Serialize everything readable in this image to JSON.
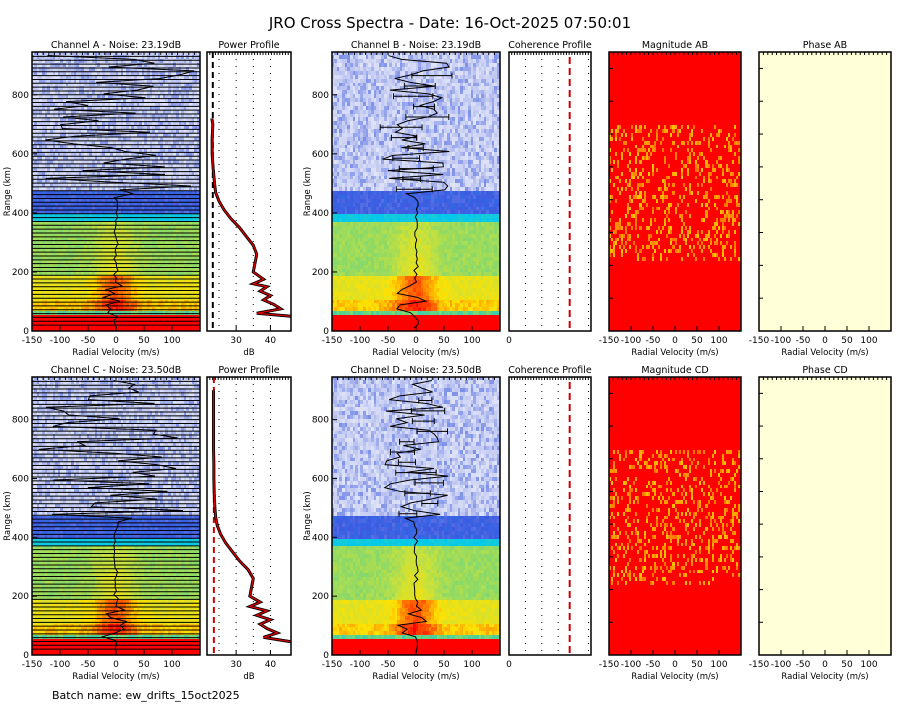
{
  "title": "JRO Cross Spectra - Date: 16-Oct-2025 07:50:01",
  "footer": "Batch name: ew_drifts_15oct2025",
  "colors": {
    "noise_line": "#000000",
    "profile_line": "#cc0000",
    "coherence_line": "#cc0000",
    "phase_fill": "#ffffd8",
    "magnitude_fill": "#ff0000"
  },
  "chart_data": [
    {
      "id": "A",
      "type": "heatmap",
      "title": "Channel A - Noise: 23.19dB",
      "noise_db": 23.19,
      "xlabel": "Radial Velocity (m/s)",
      "ylabel": "Range (km)",
      "xlim": [
        -150,
        150
      ],
      "ylim": [
        0,
        945
      ],
      "xticks": [
        "-150",
        "-100",
        "-50",
        "0",
        "50",
        "100"
      ],
      "yticks": [
        "0",
        "200",
        "400",
        "600",
        "800"
      ]
    },
    {
      "id": "PA",
      "type": "line",
      "title": "Power Profile",
      "xlabel": "dB",
      "xlim": [
        21.5,
        46
      ],
      "xticks": [
        "30",
        "40"
      ],
      "grid": true,
      "range_km": [
        50,
        60,
        75,
        90,
        105,
        120,
        135,
        150,
        160,
        175,
        200,
        230,
        260,
        290,
        320,
        350,
        380,
        410,
        440,
        470,
        500,
        550,
        600,
        650,
        700,
        720
      ],
      "power_db": [
        46,
        36,
        43,
        41,
        38,
        40,
        37,
        39,
        35,
        38,
        35,
        35.5,
        36,
        35,
        33,
        31,
        28.5,
        26.5,
        25,
        24,
        23.7,
        23.3,
        23,
        23,
        23.2,
        22.9
      ]
    },
    {
      "id": "B",
      "type": "heatmap",
      "title": "Channel B - Noise: 23.19dB",
      "noise_db": 23.19,
      "xlabel": "Radial Velocity (m/s)",
      "ylabel": "Range (km)",
      "xlim": [
        -150,
        150
      ],
      "ylim": [
        0,
        945
      ],
      "xticks": [
        "-150",
        "-100",
        "-50",
        "0",
        "50",
        "100"
      ],
      "yticks": [
        "0",
        "200",
        "400",
        "600",
        "800"
      ]
    },
    {
      "id": "CAB",
      "type": "line",
      "title": "Coherence Profile",
      "xticks": [
        "0"
      ],
      "grid": true
    },
    {
      "id": "MAB",
      "type": "heatmap",
      "title": "Magnitude AB",
      "xlabel": "Radial Velocity (m/s)",
      "xlim": [
        -150,
        150
      ],
      "xticks": [
        "-150",
        "-100",
        "-50",
        "0",
        "50",
        "100"
      ]
    },
    {
      "id": "PHAB",
      "type": "heatmap",
      "title": "Phase AB",
      "xlabel": "Radial Velocity (m/s)",
      "xlim": [
        -150,
        150
      ],
      "xticks": [
        "-150",
        "-100",
        "-50",
        "0",
        "50",
        "100"
      ]
    },
    {
      "id": "C",
      "type": "heatmap",
      "title": "Channel C - Noise: 23.50dB",
      "noise_db": 23.5,
      "xlabel": "Radial Velocity (m/s)",
      "ylabel": "Range (km)",
      "xlim": [
        -150,
        150
      ],
      "ylim": [
        0,
        945
      ],
      "xticks": [
        "-150",
        "-100",
        "-50",
        "0",
        "50",
        "100"
      ],
      "yticks": [
        "0",
        "200",
        "400",
        "600",
        "800"
      ]
    },
    {
      "id": "PC",
      "type": "line",
      "title": "Power Profile",
      "xlabel": "dB",
      "xlim": [
        21.5,
        46
      ],
      "xticks": [
        "30",
        "40"
      ],
      "grid": true,
      "range_km": [
        45,
        60,
        75,
        90,
        105,
        120,
        135,
        150,
        165,
        180,
        200,
        230,
        260,
        290,
        320,
        350,
        380,
        410,
        440,
        470,
        500,
        550,
        600,
        650,
        700,
        800,
        900
      ],
      "power_db": [
        46,
        38,
        42,
        39,
        37,
        40,
        36,
        39,
        34,
        37,
        34,
        34.5,
        35,
        33.5,
        31,
        29,
        27,
        25.5,
        24.5,
        24,
        23.8,
        23.6,
        23.5,
        23.5,
        23.4,
        23.4,
        23.4
      ]
    },
    {
      "id": "D",
      "type": "heatmap",
      "title": "Channel D - Noise: 23.50dB",
      "noise_db": 23.5,
      "xlabel": "Radial Velocity (m/s)",
      "ylabel": "Range (km)",
      "xlim": [
        -150,
        150
      ],
      "ylim": [
        0,
        945
      ],
      "xticks": [
        "-150",
        "-100",
        "-50",
        "0",
        "50",
        "100"
      ],
      "yticks": [
        "0",
        "200",
        "400",
        "600",
        "800"
      ]
    },
    {
      "id": "CCD",
      "type": "line",
      "title": "Coherence Profile",
      "xticks": [
        "0"
      ],
      "grid": true
    },
    {
      "id": "MCD",
      "type": "heatmap",
      "title": "Magnitude CD",
      "xlabel": "Radial Velocity (m/s)",
      "xlim": [
        -150,
        150
      ],
      "xticks": [
        "-150",
        "-100",
        "-50",
        "0",
        "50",
        "100"
      ]
    },
    {
      "id": "PHCD",
      "type": "heatmap",
      "title": "Phase CD",
      "xlabel": "Radial Velocity (m/s)",
      "xlim": [
        -150,
        150
      ],
      "xticks": [
        "-150",
        "-100",
        "-50",
        "0",
        "50",
        "100"
      ]
    }
  ]
}
